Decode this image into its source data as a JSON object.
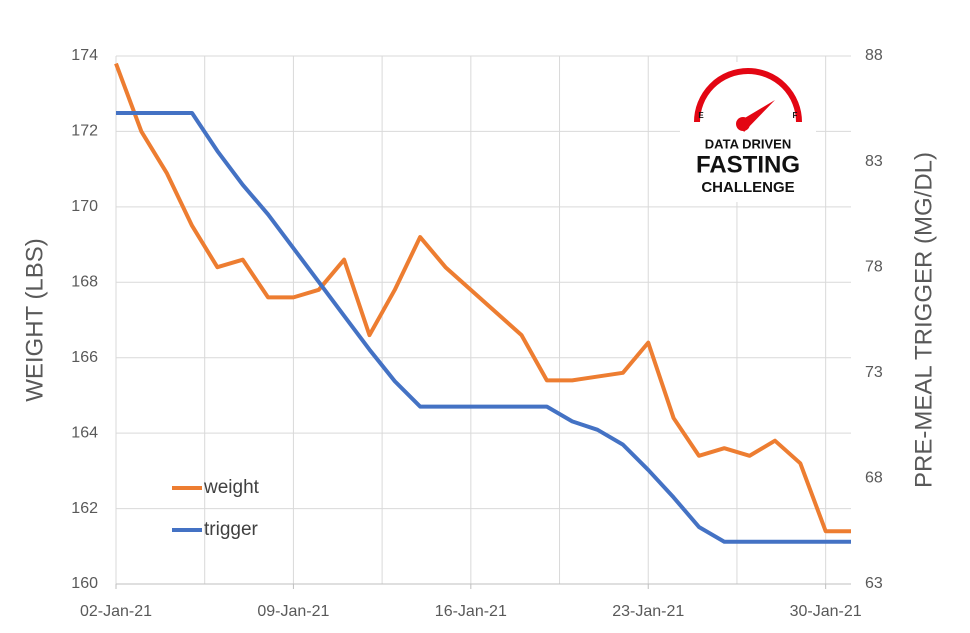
{
  "chart_data": {
    "type": "line",
    "categories": [
      "02-Jan-21",
      null,
      null,
      null,
      null,
      null,
      null,
      "09-Jan-21",
      null,
      null,
      null,
      null,
      null,
      null,
      "16-Jan-21",
      null,
      null,
      null,
      null,
      null,
      null,
      "23-Jan-21",
      null,
      null,
      null,
      null,
      null,
      null,
      "30-Jan-21",
      null
    ],
    "series": [
      {
        "name": "weight",
        "color": "#ED7D31",
        "values": [
          173.8,
          172.0,
          170.9,
          169.5,
          168.4,
          168.6,
          167.6,
          167.6,
          167.8,
          168.6,
          166.6,
          167.8,
          169.2,
          168.4,
          167.8,
          167.2,
          166.6,
          165.4,
          165.4,
          165.5,
          165.6,
          166.4,
          164.4,
          163.4,
          163.6,
          163.4,
          163.8,
          163.2,
          161.4,
          161.4
        ]
      },
      {
        "name": "trigger",
        "color": "#4472C4",
        "axis": "y2",
        "values": [
          85.3,
          85.3,
          85.3,
          85.3,
          83.5,
          81.9,
          80.5,
          78.9,
          77.3,
          75.7,
          74.1,
          72.6,
          71.4,
          71.4,
          71.4,
          71.4,
          71.4,
          71.4,
          70.7,
          70.3,
          69.6,
          68.4,
          67.1,
          65.7,
          65.0,
          65.0,
          65.0,
          65.0,
          65.0,
          65.0
        ]
      }
    ],
    "ylabel": "WEIGHT (LBS)",
    "y2label": "PRE-MEAL TRIGGER (MG/DL)",
    "ylim": [
      160,
      174
    ],
    "yticks": [
      160,
      162,
      164,
      166,
      168,
      170,
      172,
      174
    ],
    "y2lim": [
      63,
      88
    ],
    "y2ticks": [
      63,
      68,
      73,
      78,
      83,
      88
    ],
    "grid": true,
    "legend": "lower left",
    "logo": {
      "lines": [
        "DATA DRIVEN",
        "FASTING",
        "CHALLENGE"
      ],
      "gauge_labels": [
        "E",
        "F"
      ]
    }
  }
}
